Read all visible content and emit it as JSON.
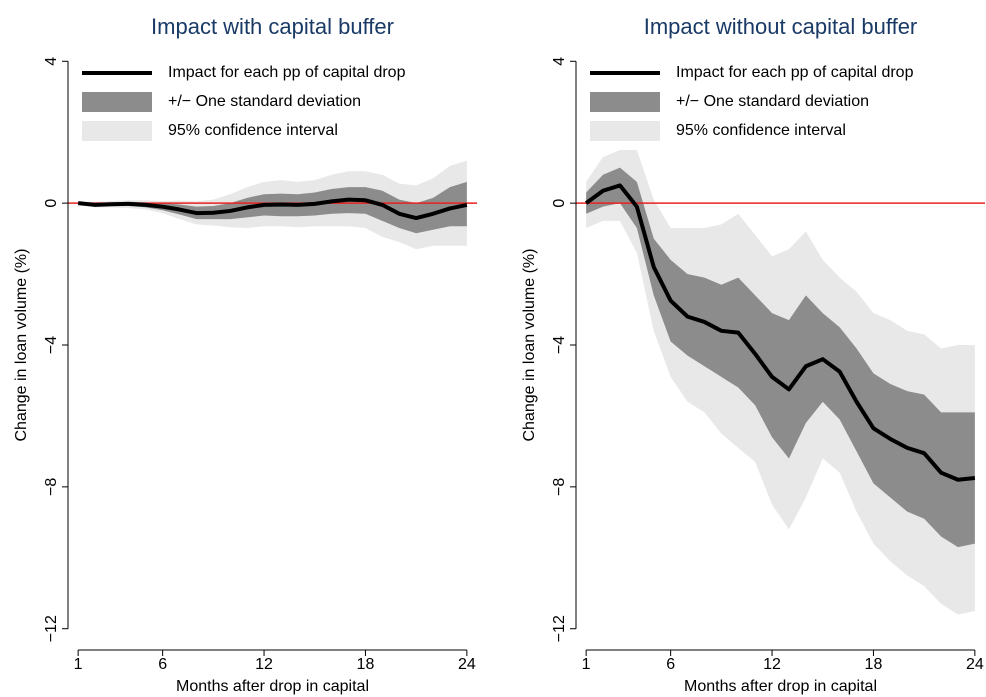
{
  "chart_data": [
    {
      "type": "line",
      "title": "Impact with capital buffer",
      "x_label": "Months after drop in capital",
      "y_label": "Change in loan volume (%)",
      "x": [
        1,
        2,
        3,
        4,
        5,
        6,
        7,
        8,
        9,
        10,
        11,
        12,
        13,
        14,
        15,
        16,
        17,
        18,
        19,
        20,
        21,
        22,
        23,
        24
      ],
      "xlim": [
        0.4,
        24.6
      ],
      "xticks": [
        1,
        6,
        12,
        18,
        24
      ],
      "ylim": [
        -12.6,
        4.6
      ],
      "yticks": [
        4,
        0,
        {
          "value": -4,
          "label": "−4"
        },
        {
          "value": -8,
          "label": "−8"
        },
        {
          "value": -12,
          "label": "−12"
        }
      ],
      "hline": {
        "value": 0,
        "color": "#e8231e"
      },
      "series": [
        {
          "name": "Impact for each pp of capital drop",
          "color": "#000000",
          "values": [
            0,
            -0.05,
            -0.03,
            -0.02,
            -0.05,
            -0.1,
            -0.18,
            -0.28,
            -0.27,
            -0.22,
            -0.12,
            -0.05,
            -0.04,
            -0.05,
            -0.02,
            0.05,
            0.1,
            0.08,
            -0.05,
            -0.3,
            -0.42,
            -0.3,
            -0.15,
            -0.05
          ]
        },
        {
          "name": "+/− One standard deviation",
          "color": "#8c8c8c",
          "lower": [
            0,
            -0.08,
            -0.08,
            -0.08,
            -0.12,
            -0.2,
            -0.32,
            -0.45,
            -0.45,
            -0.45,
            -0.4,
            -0.35,
            -0.37,
            -0.37,
            -0.35,
            -0.3,
            -0.28,
            -0.3,
            -0.5,
            -0.7,
            -0.85,
            -0.75,
            -0.65,
            -0.65
          ],
          "upper": [
            0,
            0,
            0.02,
            0.04,
            0.02,
            0,
            -0.04,
            -0.1,
            -0.08,
            0,
            0.15,
            0.25,
            0.27,
            0.25,
            0.3,
            0.4,
            0.45,
            0.45,
            0.35,
            0.1,
            0,
            0.15,
            0.45,
            0.6
          ]
        },
        {
          "name": "95% confidence interval",
          "color": "#e8e8e8",
          "lower": [
            0,
            -0.12,
            -0.12,
            -0.14,
            -0.18,
            -0.28,
            -0.45,
            -0.6,
            -0.63,
            -0.68,
            -0.7,
            -0.65,
            -0.65,
            -0.68,
            -0.65,
            -0.65,
            -0.65,
            -0.7,
            -0.95,
            -1.1,
            -1.3,
            -1.2,
            -1.2,
            -1.2
          ],
          "upper": [
            0,
            0.04,
            0.06,
            0.08,
            0.08,
            0.06,
            0.07,
            0.05,
            0.1,
            0.25,
            0.45,
            0.6,
            0.65,
            0.6,
            0.65,
            0.8,
            0.9,
            0.9,
            0.8,
            0.55,
            0.5,
            0.7,
            1.05,
            1.2
          ]
        }
      ]
    },
    {
      "type": "line",
      "title": "Impact without capital buffer",
      "x_label": "Months after drop in capital",
      "y_label": "Change in loan volume (%)",
      "x": [
        1,
        2,
        3,
        4,
        5,
        6,
        7,
        8,
        9,
        10,
        11,
        12,
        13,
        14,
        15,
        16,
        17,
        18,
        19,
        20,
        21,
        22,
        23,
        24
      ],
      "xlim": [
        0.4,
        24.6
      ],
      "xticks": [
        1,
        6,
        12,
        18,
        24
      ],
      "ylim": [
        -12.6,
        4.6
      ],
      "yticks": [
        4,
        0,
        {
          "value": -4,
          "label": "−4"
        },
        {
          "value": -8,
          "label": "−8"
        },
        {
          "value": -12,
          "label": "−12"
        }
      ],
      "hline": {
        "value": 0,
        "color": "#e8231e"
      },
      "series": [
        {
          "name": "Impact for each pp of capital drop",
          "color": "#000000",
          "values": [
            0,
            0.35,
            0.5,
            -0.1,
            -1.8,
            -2.75,
            -3.2,
            -3.35,
            -3.6,
            -3.65,
            -4.25,
            -4.9,
            -5.25,
            -4.6,
            -4.4,
            -4.75,
            -5.6,
            -6.35,
            -6.65,
            -6.9,
            -7.05,
            -7.6,
            -7.8,
            -7.75
          ]
        },
        {
          "name": "+/− One standard deviation",
          "color": "#8c8c8c",
          "lower": [
            -0.3,
            -0.1,
            0,
            -0.7,
            -2.6,
            -3.9,
            -4.3,
            -4.6,
            -4.9,
            -5.2,
            -5.7,
            -6.6,
            -7.2,
            -6.2,
            -5.6,
            -6.1,
            -7,
            -7.9,
            -8.3,
            -8.7,
            -8.9,
            -9.4,
            -9.7,
            -9.6
          ],
          "upper": [
            0.3,
            0.8,
            1,
            0.6,
            -1,
            -1.6,
            -2,
            -2.1,
            -2.3,
            -2.1,
            -2.6,
            -3.1,
            -3.3,
            -2.6,
            -3.1,
            -3.5,
            -4.1,
            -4.8,
            -5.1,
            -5.3,
            -5.4,
            -5.9,
            -5.9,
            -5.9
          ]
        },
        {
          "name": "95% confidence interval",
          "color": "#e8e8e8",
          "lower": [
            -0.7,
            -0.5,
            -0.5,
            -1.4,
            -3.6,
            -4.9,
            -5.6,
            -5.9,
            -6.5,
            -6.9,
            -7.3,
            -8.5,
            -9.2,
            -8.3,
            -7.2,
            -7.6,
            -8.7,
            -9.6,
            -10.1,
            -10.5,
            -10.8,
            -11.3,
            -11.6,
            -11.5
          ],
          "upper": [
            0.6,
            1.3,
            1.5,
            1.5,
            0.1,
            -0.7,
            -0.7,
            -0.7,
            -0.6,
            -0.3,
            -0.9,
            -1.5,
            -1.3,
            -0.8,
            -1.6,
            -2.1,
            -2.5,
            -3.1,
            -3.3,
            -3.6,
            -3.7,
            -4.1,
            -4,
            -4
          ]
        }
      ]
    }
  ]
}
